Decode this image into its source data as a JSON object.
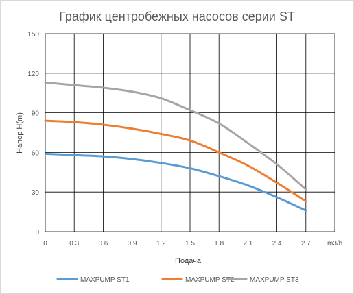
{
  "chart_data": {
    "type": "line",
    "title": "График центробежных насосов серии ST",
    "xlabel": "Подача",
    "ylabel": "Напор  H(m)",
    "x_unit_label": "m3/h",
    "x": [
      0,
      0.3,
      0.6,
      0.9,
      1.2,
      1.5,
      1.8,
      2.1,
      2.4,
      2.7
    ],
    "x_tick_labels": [
      "0",
      "0.3",
      "0.6",
      "0.9",
      "1.2",
      "1.5",
      "1.8",
      "2.1",
      "2.4",
      "2.7"
    ],
    "y_ticks": [
      0,
      30,
      60,
      90,
      120,
      150
    ],
    "y_tick_labels": [
      "0",
      "30",
      "60",
      "90",
      "120",
      "150"
    ],
    "xlim": [
      0,
      3.0
    ],
    "ylim": [
      0,
      150
    ],
    "grid": true,
    "legend_position": "bottom",
    "series": [
      {
        "name": "MAXPUMP ST1",
        "color": "#5b9bd5",
        "values": [
          59,
          58,
          57,
          55,
          52,
          48,
          42,
          35,
          26,
          16
        ]
      },
      {
        "name": "MAXPUMP ST2",
        "color": "#ed7d31",
        "values": [
          84,
          83,
          81,
          78,
          74,
          69,
          60,
          50,
          37,
          23
        ]
      },
      {
        "name": "MAXPUMP ST3",
        "color": "#a5a5a5",
        "values": [
          113,
          111,
          109,
          106,
          101,
          92,
          82,
          67,
          51,
          32
        ]
      }
    ]
  }
}
